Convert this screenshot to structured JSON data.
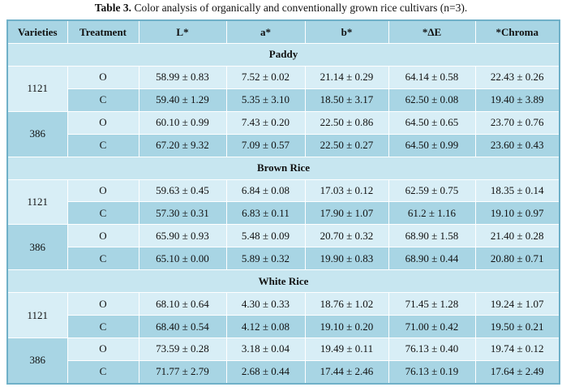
{
  "caption": {
    "label": "Table 3.",
    "text": " Color analysis of organically and conventionally grown rice cultivars (n=3)."
  },
  "headers": [
    "Varieties",
    "Treatment",
    "L*",
    "a*",
    "b*",
    "*ΔE",
    "*Chroma"
  ],
  "sections": [
    {
      "title": "Paddy",
      "varieties": [
        {
          "name": "1121",
          "rows": [
            [
              "O",
              "58.99 ± 0.83",
              "7.52 ± 0.02",
              "21.14 ± 0.29",
              "64.14 ± 0.58",
              "22.43 ± 0.26"
            ],
            [
              "C",
              "59.40 ± 1.29",
              "5.35 ± 3.10",
              "18.50 ± 3.17",
              "62.50 ± 0.08",
              "19.40 ± 3.89"
            ]
          ]
        },
        {
          "name": "386",
          "rows": [
            [
              "O",
              "60.10 ± 0.99",
              "7.43 ± 0.20",
              "22.50 ± 0.86",
              "64.50 ± 0.65",
              "23.70 ± 0.76"
            ],
            [
              "C",
              "67.20 ± 9.32",
              "7.09 ± 0.57",
              "22.50 ± 0.27",
              "64.50 ± 0.99",
              "23.60 ± 0.43"
            ]
          ]
        }
      ]
    },
    {
      "title": "Brown Rice",
      "varieties": [
        {
          "name": "1121",
          "rows": [
            [
              "O",
              "59.63 ± 0.45",
              "6.84 ± 0.08",
              "17.03 ± 0.12",
              "62.59 ± 0.75",
              "18.35 ± 0.14"
            ],
            [
              "C",
              "57.30 ± 0.31",
              "6.83 ± 0.11",
              "17.90 ± 1.07",
              "61.2 ± 1.16",
              "19.10 ± 0.97"
            ]
          ]
        },
        {
          "name": "386",
          "rows": [
            [
              "O",
              "65.90 ± 0.93",
              "5.48 ± 0.09",
              "20.70 ± 0.32",
              "68.90 ± 1.58",
              "21.40 ± 0.28"
            ],
            [
              "C",
              "65.10 ± 0.00",
              "5.89 ± 0.32",
              "19.90 ± 0.83",
              "68.90 ± 0.44",
              "20.80 ± 0.71"
            ]
          ]
        }
      ]
    },
    {
      "title": "White Rice",
      "varieties": [
        {
          "name": "1121",
          "rows": [
            [
              "O",
              "68.10 ± 0.64",
              "4.30 ± 0.33",
              "18.76 ± 1.02",
              "71.45 ± 1.28",
              "19.24 ± 1.07"
            ],
            [
              "C",
              "68.40 ± 0.54",
              "4.12 ± 0.08",
              "19.10 ± 0.20",
              "71.00 ± 0.42",
              "19.50 ± 0.21"
            ]
          ]
        },
        {
          "name": "386",
          "rows": [
            [
              "O",
              "73.59 ± 0.28",
              "3.18 ± 0.04",
              "19.49 ± 0.11",
              "76.13 ± 0.40",
              "19.74 ± 0.12"
            ],
            [
              "C",
              "71.77 ± 2.79",
              "2.68 ± 0.44",
              "17.44 ± 2.46",
              "76.13 ± 0.19",
              "17.64 ± 2.49"
            ]
          ]
        }
      ]
    }
  ]
}
